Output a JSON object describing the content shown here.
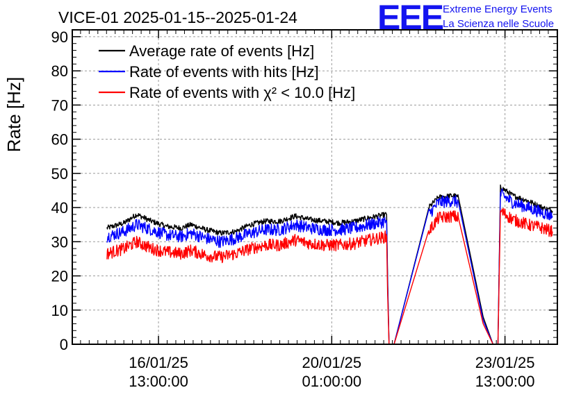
{
  "chart_data": {
    "type": "line",
    "title": "VICE-01 2025-01-15--2025-01-24",
    "ylabel": "Rate [Hz]",
    "xlabel": "",
    "ylim": [
      0,
      92
    ],
    "yticks": [
      0,
      10,
      20,
      30,
      40,
      50,
      60,
      70,
      80,
      90
    ],
    "x_unit": "days since 2025-01-15 00:00",
    "xlim": [
      -0.2,
      9.6
    ],
    "xticks": [
      {
        "x": 1.5417,
        "date": "16/01/25",
        "time": "13:00:00"
      },
      {
        "x": 5.0417,
        "date": "20/01/25",
        "time": "01:00:00"
      },
      {
        "x": 8.5417,
        "date": "23/01/25",
        "time": "13:00:00"
      }
    ],
    "grid": true,
    "legend_position": "top-left",
    "series": [
      {
        "name": "Average rate of events [Hz]",
        "color": "#000000",
        "noise": 0.8,
        "points": [
          [
            0.5,
            34
          ],
          [
            0.85,
            35.5
          ],
          [
            1.1,
            38
          ],
          [
            1.4,
            36
          ],
          [
            1.7,
            34.5
          ],
          [
            2.0,
            34
          ],
          [
            2.2,
            35
          ],
          [
            2.5,
            33.5
          ],
          [
            2.8,
            32.5
          ],
          [
            3.1,
            33
          ],
          [
            3.4,
            35
          ],
          [
            3.7,
            36
          ],
          [
            4.0,
            36
          ],
          [
            4.3,
            37.5
          ],
          [
            4.6,
            36.5
          ],
          [
            4.9,
            36
          ],
          [
            5.2,
            35.5
          ],
          [
            5.5,
            36
          ],
          [
            5.8,
            37
          ],
          [
            6.15,
            38
          ],
          [
            6.17,
            20
          ],
          [
            6.2,
            0
          ],
          [
            6.3,
            0
          ],
          [
            7.0,
            40
          ],
          [
            7.2,
            43
          ],
          [
            7.5,
            43.5
          ],
          [
            7.6,
            43
          ],
          [
            8.1,
            8
          ],
          [
            8.3,
            0
          ],
          [
            8.4,
            0
          ],
          [
            8.45,
            46
          ],
          [
            8.7,
            43.5
          ],
          [
            9.0,
            42
          ],
          [
            9.3,
            40
          ],
          [
            9.5,
            39
          ]
        ]
      },
      {
        "name": "Rate of events with hits [Hz]",
        "color": "#0000ff",
        "noise": 1.8,
        "points": [
          [
            0.5,
            31.5
          ],
          [
            0.85,
            33
          ],
          [
            1.1,
            35
          ],
          [
            1.4,
            33.5
          ],
          [
            1.7,
            32
          ],
          [
            2.0,
            31.5
          ],
          [
            2.2,
            32.5
          ],
          [
            2.5,
            31
          ],
          [
            2.8,
            30
          ],
          [
            3.1,
            31
          ],
          [
            3.4,
            32.5
          ],
          [
            3.7,
            33.5
          ],
          [
            4.0,
            33.5
          ],
          [
            4.3,
            35
          ],
          [
            4.6,
            34
          ],
          [
            4.9,
            33.5
          ],
          [
            5.2,
            33.5
          ],
          [
            5.5,
            34
          ],
          [
            5.8,
            35
          ],
          [
            6.15,
            36
          ],
          [
            6.17,
            18
          ],
          [
            6.2,
            0
          ],
          [
            6.3,
            0
          ],
          [
            7.0,
            38
          ],
          [
            7.2,
            41.5
          ],
          [
            7.5,
            42
          ],
          [
            7.6,
            41.5
          ],
          [
            8.1,
            7
          ],
          [
            8.3,
            0
          ],
          [
            8.4,
            0
          ],
          [
            8.45,
            44
          ],
          [
            8.7,
            41.5
          ],
          [
            9.0,
            40
          ],
          [
            9.3,
            38.5
          ],
          [
            9.5,
            37.5
          ]
        ]
      },
      {
        "name": "Rate of events with χ² < 10.0 [Hz]",
        "color": "#ff0000",
        "noise": 1.8,
        "points": [
          [
            0.5,
            26.5
          ],
          [
            0.85,
            28
          ],
          [
            1.1,
            30
          ],
          [
            1.4,
            28
          ],
          [
            1.7,
            27
          ],
          [
            2.0,
            26.5
          ],
          [
            2.2,
            27.5
          ],
          [
            2.5,
            26
          ],
          [
            2.8,
            25.5
          ],
          [
            3.1,
            26.5
          ],
          [
            3.4,
            28
          ],
          [
            3.7,
            29
          ],
          [
            4.0,
            29
          ],
          [
            4.3,
            30.5
          ],
          [
            4.6,
            29.5
          ],
          [
            4.9,
            29
          ],
          [
            5.2,
            29
          ],
          [
            5.5,
            29.5
          ],
          [
            5.8,
            30.5
          ],
          [
            6.15,
            31.5
          ],
          [
            6.17,
            15
          ],
          [
            6.2,
            0
          ],
          [
            6.3,
            0
          ],
          [
            7.0,
            33
          ],
          [
            7.2,
            37
          ],
          [
            7.5,
            37.5
          ],
          [
            7.6,
            37
          ],
          [
            8.1,
            6
          ],
          [
            8.3,
            0
          ],
          [
            8.4,
            0
          ],
          [
            8.45,
            39
          ],
          [
            8.7,
            36.5
          ],
          [
            9.0,
            35
          ],
          [
            9.3,
            34
          ],
          [
            9.5,
            33
          ]
        ]
      }
    ]
  },
  "logo": {
    "mark": "EEE",
    "line1": "Extreme Energy Events",
    "line2": "La Scienza nelle Scuole"
  }
}
